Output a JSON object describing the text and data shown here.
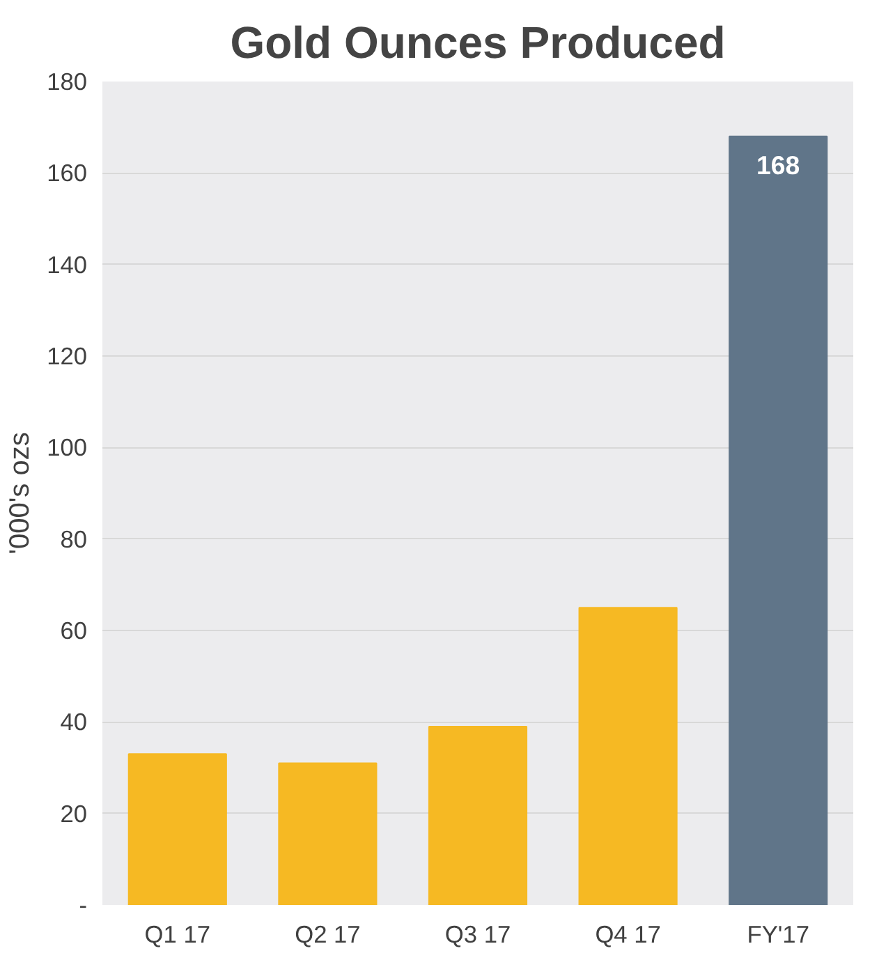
{
  "chart_data": {
    "type": "bar",
    "title": "Gold Ounces Produced",
    "ylabel": "'000's ozs",
    "categories": [
      "Q1 17",
      "Q2 17",
      "Q3 17",
      "Q4 17",
      "FY'17"
    ],
    "values": [
      33,
      31,
      39,
      65,
      168
    ],
    "colors": [
      "#f6b923",
      "#f6b923",
      "#f6b923",
      "#f6b923",
      "#607589"
    ],
    "value_labels": [
      null,
      null,
      null,
      null,
      "168"
    ],
    "ylim": [
      0,
      180
    ],
    "yticks": [
      {
        "value": 0,
        "label": "-"
      },
      20,
      40,
      60,
      80,
      100,
      120,
      140,
      160,
      180
    ],
    "grid": "y"
  }
}
